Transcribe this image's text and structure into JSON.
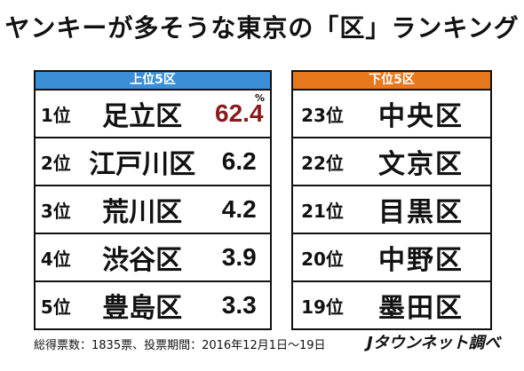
{
  "title": "ヤンキーが多そうな東京の「区」ランキング",
  "top": {
    "header": "上位5区",
    "unit": "%",
    "rows": [
      {
        "rank": "1位",
        "ward": "足立区",
        "value": "62.4"
      },
      {
        "rank": "2位",
        "ward": "江戸川区",
        "value": "6.2"
      },
      {
        "rank": "3位",
        "ward": "荒川区",
        "value": "4.2"
      },
      {
        "rank": "4位",
        "ward": "渋谷区",
        "value": "3.9"
      },
      {
        "rank": "5位",
        "ward": "豊島区",
        "value": "3.3"
      }
    ]
  },
  "bottom": {
    "header": "下位5区",
    "rows": [
      {
        "rank": "23位",
        "ward": "中央区"
      },
      {
        "rank": "22位",
        "ward": "文京区"
      },
      {
        "rank": "21位",
        "ward": "目黒区"
      },
      {
        "rank": "20位",
        "ward": "中野区"
      },
      {
        "rank": "19位",
        "ward": "墨田区"
      }
    ]
  },
  "footer_note": "総得票数：1835票、投票期間：2016年12月1日〜19日",
  "brand": "Jタウンネット調べ",
  "colors": {
    "top_header": "#3a8fd6",
    "bottom_header": "#e8781e",
    "highlight_value": "#8b1a1a"
  },
  "chart_data": {
    "type": "table",
    "title": "ヤンキーが多そうな東京の「区」ランキング",
    "unit": "%",
    "top5": [
      {
        "rank": 1,
        "ward": "足立区",
        "value": 62.4
      },
      {
        "rank": 2,
        "ward": "江戸川区",
        "value": 6.2
      },
      {
        "rank": 3,
        "ward": "荒川区",
        "value": 4.2
      },
      {
        "rank": 4,
        "ward": "渋谷区",
        "value": 3.9
      },
      {
        "rank": 5,
        "ward": "豊島区",
        "value": 3.3
      }
    ],
    "bottom5": [
      {
        "rank": 23,
        "ward": "中央区"
      },
      {
        "rank": 22,
        "ward": "文京区"
      },
      {
        "rank": 21,
        "ward": "目黒区"
      },
      {
        "rank": 20,
        "ward": "中野区"
      },
      {
        "rank": 19,
        "ward": "墨田区"
      }
    ]
  }
}
